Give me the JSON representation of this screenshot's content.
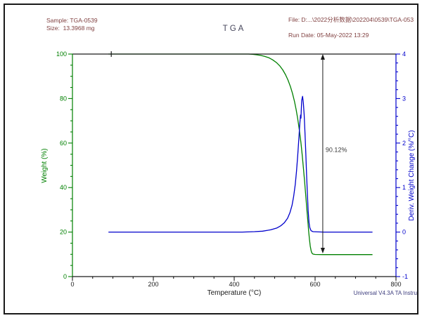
{
  "header": {
    "sample_label": "Sample: TGA-0539",
    "size_label": "Size:  13.3968 mg",
    "file_label": "File: D:...\\2022分析数据\\202204\\0539\\TGA-053",
    "run_date_label": "Run Date: 05-May-2022 13:29"
  },
  "footer": {
    "instrument_label": "Universal V4.3A TA Instru"
  },
  "colors": {
    "weight_curve": "#008000",
    "deriv_curve": "#0000cc",
    "header_text": "#804040",
    "title_text": "#44445a",
    "axis_black": "#1a1a1a",
    "annotation_text": "#3a3a3a",
    "instrument_text": "#3f3f7f"
  },
  "chart_data": {
    "type": "line",
    "title": "TGA",
    "xlabel": "Temperature (°C)",
    "grid": false,
    "x_axis": {
      "min": 0,
      "max": 800,
      "major": 200,
      "minor": 50
    },
    "left_axis": {
      "label": "Weight (%)",
      "min": 0,
      "max": 100,
      "major": 20,
      "minor": 5,
      "color": "#008000"
    },
    "right_axis": {
      "label": "Deriv. Weight Change (%/°C)",
      "min": -1,
      "max": 4,
      "major": 1,
      "minor": 0.2,
      "color": "#0000cc"
    },
    "top_axis_tick_temp": 96,
    "series": [
      {
        "name": "Weight",
        "axis": "left",
        "color": "#008000",
        "points": [
          [
            89,
            100
          ],
          [
            150,
            100
          ],
          [
            250,
            100
          ],
          [
            350,
            100
          ],
          [
            420,
            100
          ],
          [
            435,
            100
          ],
          [
            445,
            99.9
          ],
          [
            455,
            99.7
          ],
          [
            465,
            99.4
          ],
          [
            475,
            99
          ],
          [
            485,
            98.4
          ],
          [
            495,
            97.4
          ],
          [
            505,
            96.1
          ],
          [
            513,
            94.6
          ],
          [
            520,
            92.9
          ],
          [
            527,
            90.7
          ],
          [
            533,
            88.3
          ],
          [
            539,
            85.4
          ],
          [
            544,
            82.4
          ],
          [
            549,
            78.7
          ],
          [
            553,
            75.1
          ],
          [
            557,
            70.9
          ],
          [
            561,
            65.9
          ],
          [
            565,
            60.1
          ],
          [
            568,
            54.9
          ],
          [
            571,
            49.1
          ],
          [
            574,
            42.7
          ],
          [
            577,
            36.1
          ],
          [
            580,
            29.4
          ],
          [
            582,
            24.9
          ],
          [
            584,
            20.5
          ],
          [
            586,
            16.7
          ],
          [
            588,
            13.7
          ],
          [
            590,
            11.7
          ],
          [
            592,
            10.6
          ],
          [
            595,
            10.1
          ],
          [
            600,
            9.95
          ],
          [
            620,
            9.88
          ],
          [
            680,
            9.88
          ],
          [
            742,
            9.88
          ]
        ]
      },
      {
        "name": "Deriv. Weight Change",
        "axis": "right",
        "color": "#0000cc",
        "points": [
          [
            89,
            0
          ],
          [
            150,
            0
          ],
          [
            250,
            0
          ],
          [
            350,
            0
          ],
          [
            420,
            0
          ],
          [
            450,
            0.01
          ],
          [
            470,
            0.02
          ],
          [
            490,
            0.05
          ],
          [
            505,
            0.09
          ],
          [
            515,
            0.14
          ],
          [
            524,
            0.21
          ],
          [
            532,
            0.31
          ],
          [
            538,
            0.44
          ],
          [
            543,
            0.6
          ],
          [
            547,
            0.8
          ],
          [
            551,
            1.07
          ],
          [
            554,
            1.37
          ],
          [
            557,
            1.72
          ],
          [
            560,
            2.12
          ],
          [
            562,
            2.42
          ],
          [
            564,
            2.63
          ],
          [
            565,
            2.56
          ],
          [
            566,
            2.76
          ],
          [
            567,
            2.96
          ],
          [
            569,
            3.05
          ],
          [
            571,
            2.9
          ],
          [
            573,
            2.63
          ],
          [
            575,
            2.24
          ],
          [
            577,
            1.77
          ],
          [
            579,
            1.29
          ],
          [
            581,
            0.84
          ],
          [
            583,
            0.47
          ],
          [
            585,
            0.21
          ],
          [
            587,
            0.1
          ],
          [
            590,
            0.03
          ],
          [
            595,
            0.01
          ],
          [
            620,
            0
          ],
          [
            680,
            0
          ],
          [
            742,
            0
          ]
        ]
      }
    ],
    "annotation": {
      "label": "90.12%",
      "temp": 619,
      "from_value": 100,
      "to_value": 10.4,
      "label_at_value": 57
    }
  }
}
